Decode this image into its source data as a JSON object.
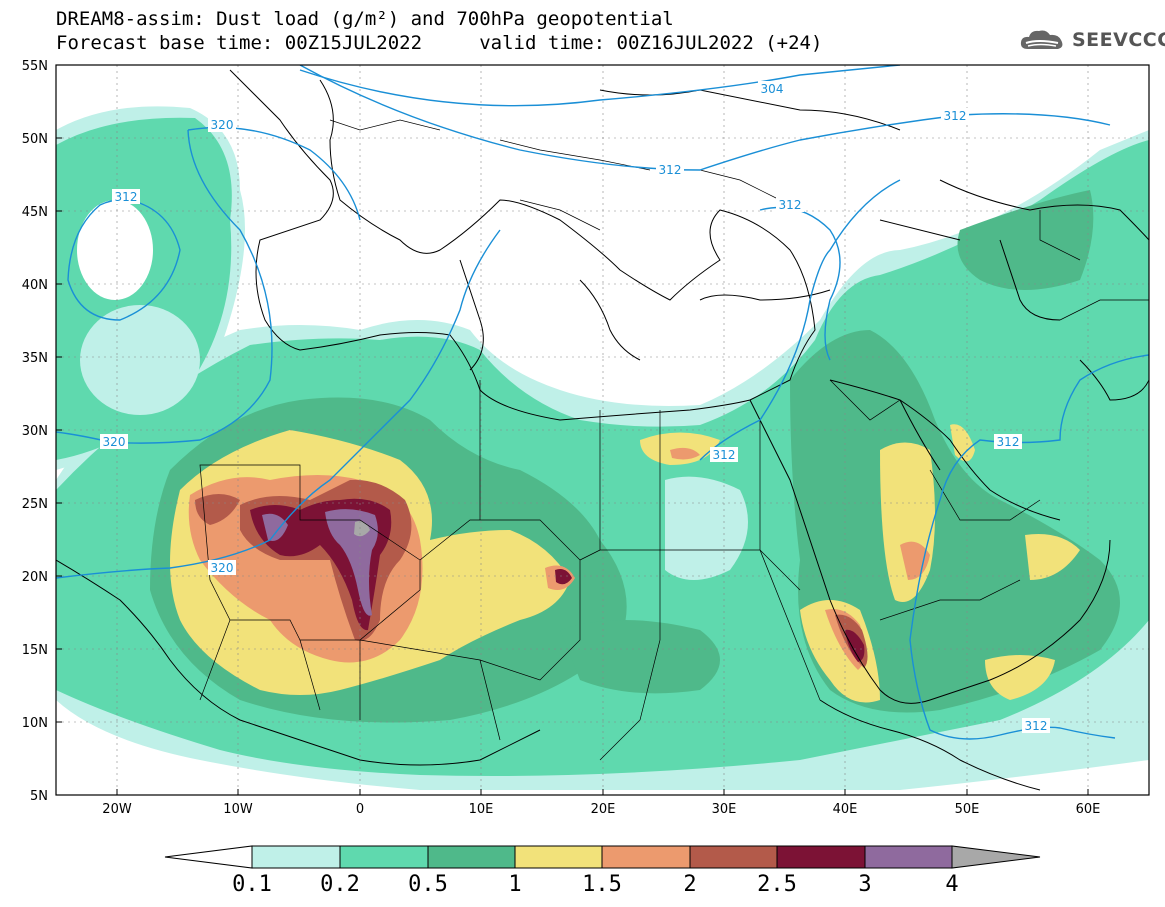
{
  "title": {
    "line1": "DREAM8-assim: Dust load (g/m²) and 700hPa geopotential",
    "line2": "Forecast base time: 00Z15JUL2022     valid time: 00Z16JUL2022 (+24)"
  },
  "logo": {
    "text": "SEEVCCC",
    "icon": "cloud-icon"
  },
  "axes": {
    "lon_range": [
      -25,
      65
    ],
    "lat_range": [
      5,
      55
    ],
    "y_ticks": [
      "55N",
      "50N",
      "45N",
      "40N",
      "35N",
      "30N",
      "25N",
      "20N",
      "15N",
      "10N",
      "5N"
    ],
    "x_ticks": [
      "20W",
      "10W",
      "0",
      "10E",
      "20E",
      "30E",
      "40E",
      "50E",
      "60E"
    ]
  },
  "colorbar": {
    "labels": [
      "0.1",
      "0.2",
      "0.5",
      "1",
      "1.5",
      "2",
      "2.5",
      "3",
      "4"
    ],
    "colors": [
      "#bff0e8",
      "#5fd9ae",
      "#4fb98a",
      "#f2e27a",
      "#ec9a6e",
      "#b35a4a",
      "#7c1235",
      "#8f6a9e",
      "#a8a8a8"
    ]
  },
  "contour_labels": [
    {
      "text": "304"
    },
    {
      "text": "312"
    },
    {
      "text": "312"
    },
    {
      "text": "312"
    },
    {
      "text": "320"
    },
    {
      "text": "312"
    },
    {
      "text": "320"
    },
    {
      "text": "320"
    },
    {
      "text": "312"
    },
    {
      "text": "312"
    },
    {
      "text": "312"
    }
  ],
  "colors": {
    "contour": "#1a8fd6",
    "border": "#000000"
  }
}
